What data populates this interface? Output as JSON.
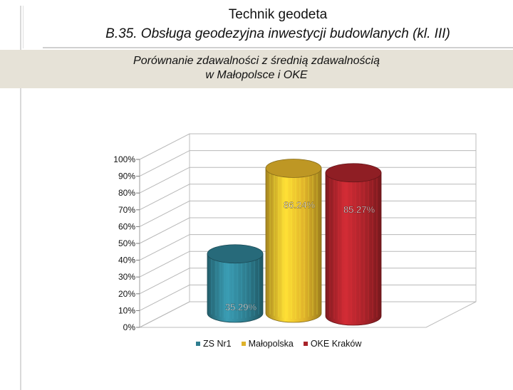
{
  "slide": {
    "title": "Technik geodeta",
    "subtitle": "B.35. Obsługa geodezyjna inwestycji budowlanych (kl. III)"
  },
  "chart_data": {
    "type": "bar",
    "title_line1": "Porównanie zdawalności z średnią zdawalnością",
    "title_line2": "w Małopolsce i OKE",
    "categories": [
      "ZS Nr1",
      "Małopolska",
      "OKE Kraków"
    ],
    "values": [
      35.29,
      86.24,
      85.27
    ],
    "value_labels": [
      "35.29%",
      "86.24%",
      "85.27%"
    ],
    "colors": [
      "#2e7d8f",
      "#dfb22a",
      "#a8232a"
    ],
    "ylim": [
      0,
      100
    ],
    "yticks": [
      "0%",
      "10%",
      "20%",
      "30%",
      "40%",
      "50%",
      "60%",
      "70%",
      "80%",
      "90%",
      "100%"
    ],
    "grid": true,
    "legend_position": "bottom"
  }
}
